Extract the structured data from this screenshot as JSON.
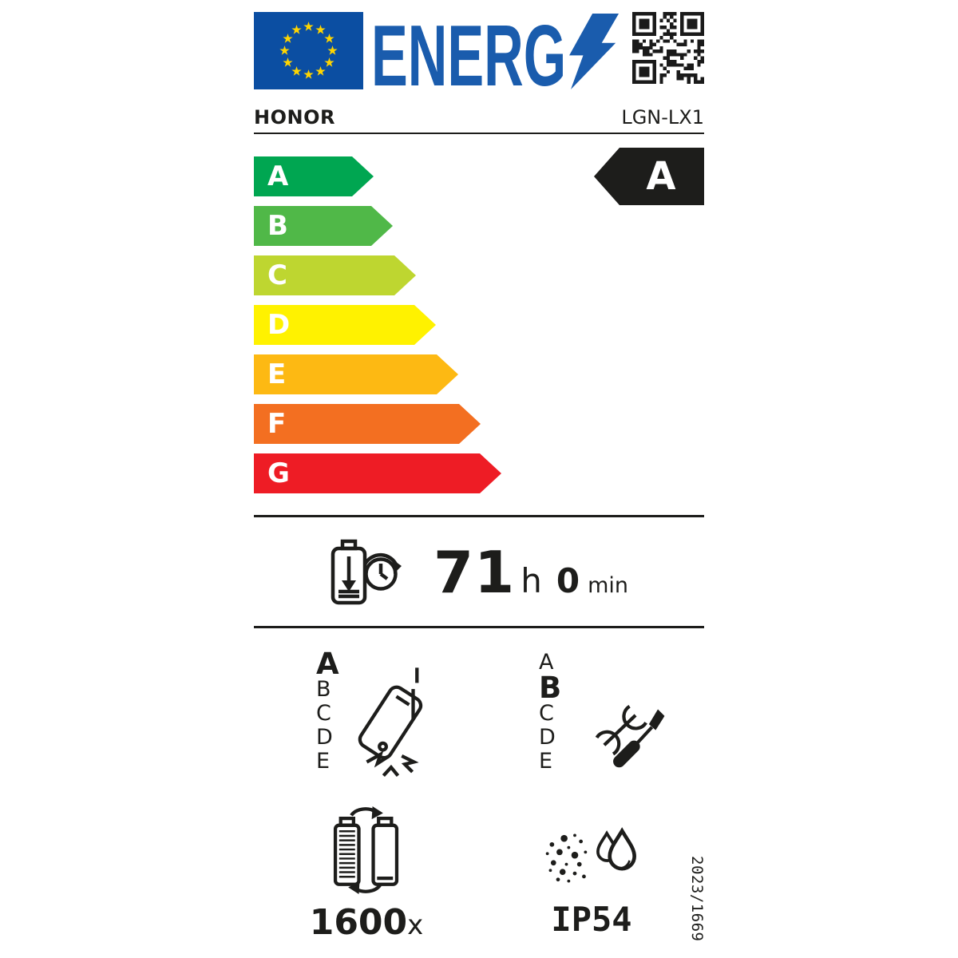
{
  "header": {
    "logo_text": "ENERG"
  },
  "brand": {
    "name": "HONOR",
    "model": "LGN-LX1"
  },
  "scale": {
    "selected": "A",
    "classes": [
      {
        "letter": "A",
        "color": "#00A651"
      },
      {
        "letter": "B",
        "color": "#50B848"
      },
      {
        "letter": "C",
        "color": "#BED630"
      },
      {
        "letter": "D",
        "color": "#FFF200"
      },
      {
        "letter": "E",
        "color": "#FDB913"
      },
      {
        "letter": "F",
        "color": "#F36F21"
      },
      {
        "letter": "G",
        "color": "#EE1C25"
      }
    ]
  },
  "endurance": {
    "hours": "71",
    "hours_unit": "h",
    "minutes": "0",
    "minutes_unit": "min"
  },
  "drop_reliability": {
    "selected": "A",
    "classes": [
      "A",
      "B",
      "C",
      "D",
      "E"
    ]
  },
  "repairability": {
    "selected": "B",
    "classes": [
      "A",
      "B",
      "C",
      "D",
      "E"
    ]
  },
  "battery_cycles": {
    "value": "1600",
    "unit": "x"
  },
  "ip_rating": "IP54",
  "regulation": "2023/1669",
  "colors": {
    "eu_flag_blue": "#0B4EA2",
    "eu_star_yellow": "#FFD500",
    "logo_blue": "#1A5CAD",
    "ink_black": "#1D1D1B"
  }
}
